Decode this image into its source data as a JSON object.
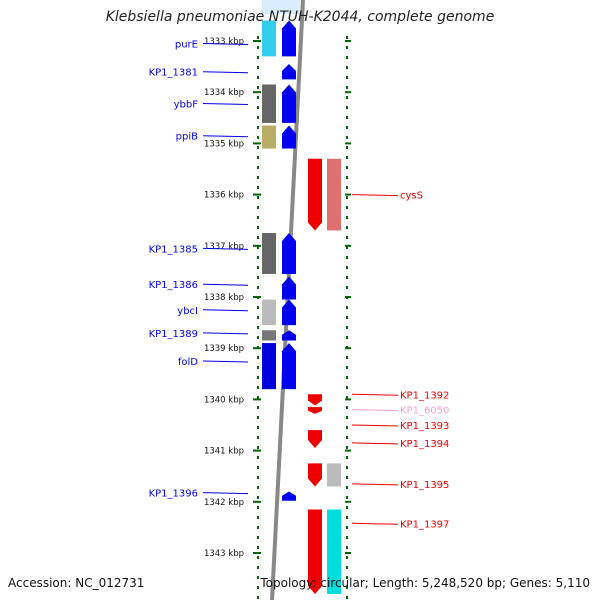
{
  "title": "Klebsiella pneumoniae NTUH-K2044, complete genome",
  "footer": {
    "accession": "Accession: NC_012731",
    "topology": "Topology: circular; Length: 5,248,520 bp; Genes: 5,110"
  },
  "colors": {
    "forward_gene": "#0000ee",
    "reverse_gene": "#ee0000",
    "reverse_gene_faint": "#f0a0d0",
    "axis_ticks": "#006600",
    "backbone": "#888888"
  },
  "chart_data": {
    "type": "genome_map",
    "unit": "kbp",
    "kbp_ticks": [
      {
        "kbp": 1333,
        "label": "1333 kbp"
      },
      {
        "kbp": 1334,
        "label": "1334 kbp"
      },
      {
        "kbp": 1335,
        "label": "1335 kbp"
      },
      {
        "kbp": 1336,
        "label": "1336 kbp"
      },
      {
        "kbp": 1337,
        "label": "1337 kbp"
      },
      {
        "kbp": 1338,
        "label": "1338 kbp"
      },
      {
        "kbp": 1339,
        "label": "1339 kbp"
      },
      {
        "kbp": 1340,
        "label": "1340 kbp"
      },
      {
        "kbp": 1341,
        "label": "1341 kbp"
      },
      {
        "kbp": 1342,
        "label": "1342 kbp"
      },
      {
        "kbp": 1343,
        "label": "1343 kbp"
      }
    ],
    "genes": [
      {
        "name": "purE",
        "strand": "+",
        "start": 1332.6,
        "end": 1333.3,
        "color": "blue",
        "hit_color": "#33ccee",
        "label_kbp": 1333.05
      },
      {
        "name": "KP1_1381",
        "strand": "+",
        "start": 1333.45,
        "end": 1333.75,
        "color": "blue",
        "hit_color": null,
        "label_kbp": 1333.6
      },
      {
        "name": "ybbF",
        "strand": "+",
        "start": 1333.85,
        "end": 1334.6,
        "color": "blue",
        "hit_color": "#666666",
        "label_kbp": 1334.22
      },
      {
        "name": "ppiB",
        "strand": "+",
        "start": 1334.65,
        "end": 1335.1,
        "color": "blue",
        "hit_color": "#b8ac66",
        "label_kbp": 1334.85
      },
      {
        "name": "cysS",
        "strand": "-",
        "start": 1335.3,
        "end": 1336.7,
        "color": "red",
        "hit_color": "#e07070",
        "label_kbp": 1336.0
      },
      {
        "name": "KP1_1385",
        "strand": "+",
        "start": 1336.75,
        "end": 1337.55,
        "color": "blue",
        "hit_color": "#666666",
        "label_kbp": 1337.05
      },
      {
        "name": "KP1_1386",
        "strand": "+",
        "start": 1337.6,
        "end": 1338.05,
        "color": "blue",
        "hit_color": null,
        "label_kbp": 1337.75
      },
      {
        "name": "ybcI",
        "strand": "+",
        "start": 1338.05,
        "end": 1338.55,
        "color": "blue",
        "hit_color": "#bbbbbb",
        "label_kbp": 1338.25
      },
      {
        "name": "KP1_1389",
        "strand": "+",
        "start": 1338.65,
        "end": 1338.85,
        "color": "blue",
        "hit_color": "#777777",
        "label_kbp": 1338.7
      },
      {
        "name": "folD",
        "strand": "+",
        "start": 1338.9,
        "end": 1339.8,
        "color": "blue",
        "hit_color": "#0000dd",
        "label_kbp": 1339.25
      },
      {
        "name": "KP1_1392",
        "strand": "-",
        "start": 1339.9,
        "end": 1340.12,
        "color": "red",
        "hit_color": null,
        "label_kbp": 1339.9
      },
      {
        "name": "KP1_6050",
        "strand": "-",
        "start": 1340.15,
        "end": 1340.28,
        "color": "red",
        "hit_color": null,
        "label_kbp": 1340.2,
        "faint": true
      },
      {
        "name": "KP1_1393",
        "strand": "-",
        "start": 1340.15,
        "end": 1340.28,
        "color": "red",
        "hit_color": null,
        "label_kbp": 1340.5
      },
      {
        "name": "KP1_1394",
        "strand": "-",
        "start": 1340.6,
        "end": 1340.95,
        "color": "red",
        "hit_color": null,
        "label_kbp": 1340.85
      },
      {
        "name": "KP1_1395",
        "strand": "-",
        "start": 1341.25,
        "end": 1341.7,
        "color": "red",
        "hit_color": "#bbbbbb",
        "label_kbp": 1341.65
      },
      {
        "name": "KP1_1396",
        "strand": "+",
        "start": 1341.8,
        "end": 1341.98,
        "color": "blue",
        "hit_color": null,
        "label_kbp": 1341.82
      },
      {
        "name": "KP1_1397",
        "strand": "-",
        "start": 1342.15,
        "end": 1343.8,
        "color": "red",
        "hit_color": "#00dddd",
        "label_kbp": 1342.42
      }
    ]
  }
}
